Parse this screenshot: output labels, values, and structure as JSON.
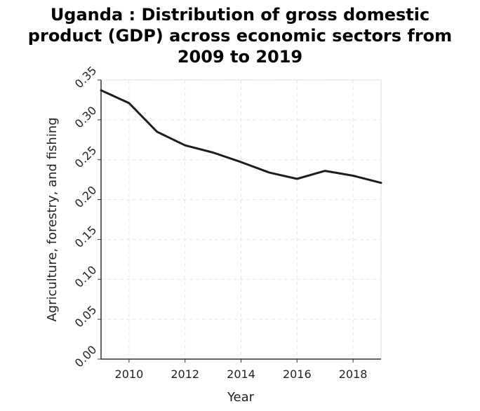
{
  "chart_data": {
    "type": "line",
    "title_lines": [
      "Uganda : Distribution of gross domestic",
      "product (GDP) across economic sectors from",
      "2009 to 2019"
    ],
    "xlabel": "Year",
    "ylabel": "Agriculture, forestry, and fishing",
    "xlim": [
      2009,
      2019
    ],
    "ylim": [
      0,
      0.35
    ],
    "x_ticks": [
      2010,
      2012,
      2014,
      2016,
      2018
    ],
    "y_ticks": [
      "0.00",
      "0.05",
      "0.10",
      "0.15",
      "0.20",
      "0.25",
      "0.30",
      "0.35"
    ],
    "grid": true,
    "series": [
      {
        "x": [
          2009,
          2010,
          2011,
          2012,
          2013,
          2014,
          2015,
          2016,
          2017,
          2018,
          2019
        ],
        "values": [
          0.337,
          0.321,
          0.285,
          0.268,
          0.259,
          0.247,
          0.234,
          0.226,
          0.236,
          0.23,
          0.221
        ],
        "color": "#1a1e24"
      }
    ]
  }
}
